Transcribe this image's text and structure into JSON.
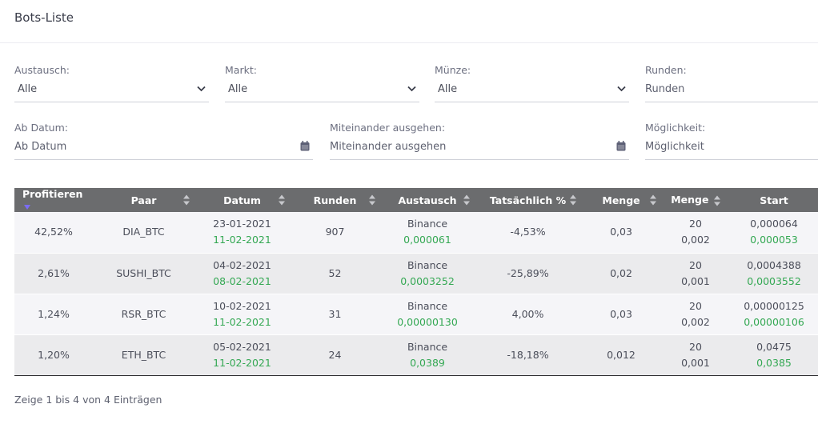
{
  "page": {
    "title": "Bots-Liste"
  },
  "filters": {
    "austausch": {
      "label": "Austausch:",
      "value": "Alle"
    },
    "markt": {
      "label": "Markt:",
      "value": "Alle"
    },
    "muenze": {
      "label": "Münze:",
      "value": "Alle"
    },
    "runden": {
      "label": "Runden:",
      "placeholder": "Runden"
    },
    "ab_datum": {
      "label": "Ab Datum:",
      "placeholder": "Ab Datum"
    },
    "miteinander": {
      "label": "Miteinander ausgehen:",
      "placeholder": "Miteinander ausgehen"
    },
    "moeglichkeit": {
      "label": "Möglichkeit:",
      "placeholder": "Möglichkeit"
    }
  },
  "table": {
    "headers": [
      "Profitieren",
      "Paar",
      "Datum",
      "Runden",
      "Austausch",
      "Tatsächlich %",
      "Menge",
      "Menge",
      "Start"
    ],
    "rows": [
      {
        "profit": "42,52%",
        "pair": "DIA_BTC",
        "date1": "23-01-2021",
        "date2": "11-02-2021",
        "rounds": "907",
        "exchange": "Binance",
        "exchange_val": "0,000061",
        "actual": "-4,53%",
        "actual_color": "red",
        "menge": "0,03",
        "menge2_a": "20",
        "menge2_b": "0,002",
        "start_a": "0,000064",
        "start_b": "0,000053"
      },
      {
        "profit": "2,61%",
        "pair": "SUSHI_BTC",
        "date1": "04-02-2021",
        "date2": "08-02-2021",
        "rounds": "52",
        "exchange": "Binance",
        "exchange_val": "0,0003252",
        "actual": "-25,89%",
        "actual_color": "red",
        "menge": "0,02",
        "menge2_a": "20",
        "menge2_b": "0,001",
        "start_a": "0,0004388",
        "start_b": "0,0003552"
      },
      {
        "profit": "1,24%",
        "pair": "RSR_BTC",
        "date1": "10-02-2021",
        "date2": "11-02-2021",
        "rounds": "31",
        "exchange": "Binance",
        "exchange_val": "0,00000130",
        "actual": "4,00%",
        "actual_color": "green",
        "menge": "0,03",
        "menge2_a": "20",
        "menge2_b": "0,002",
        "start_a": "0,00000125",
        "start_b": "0,00000106"
      },
      {
        "profit": "1,20%",
        "pair": "ETH_BTC",
        "date1": "05-02-2021",
        "date2": "11-02-2021",
        "rounds": "24",
        "exchange": "Binance",
        "exchange_val": "0,0389",
        "actual": "-18,18%",
        "actual_color": "red",
        "menge": "0,012",
        "menge2_a": "20",
        "menge2_b": "0,001",
        "start_a": "0,0475",
        "start_b": "0,0385"
      }
    ]
  },
  "footer": {
    "info": "Zeige 1 bis 4 von 4 Einträgen"
  },
  "colors": {
    "header_bg": "#6b6c6e",
    "positive": "#34a853",
    "negative": "#e04848",
    "sort_active": "#7b6cf6"
  }
}
